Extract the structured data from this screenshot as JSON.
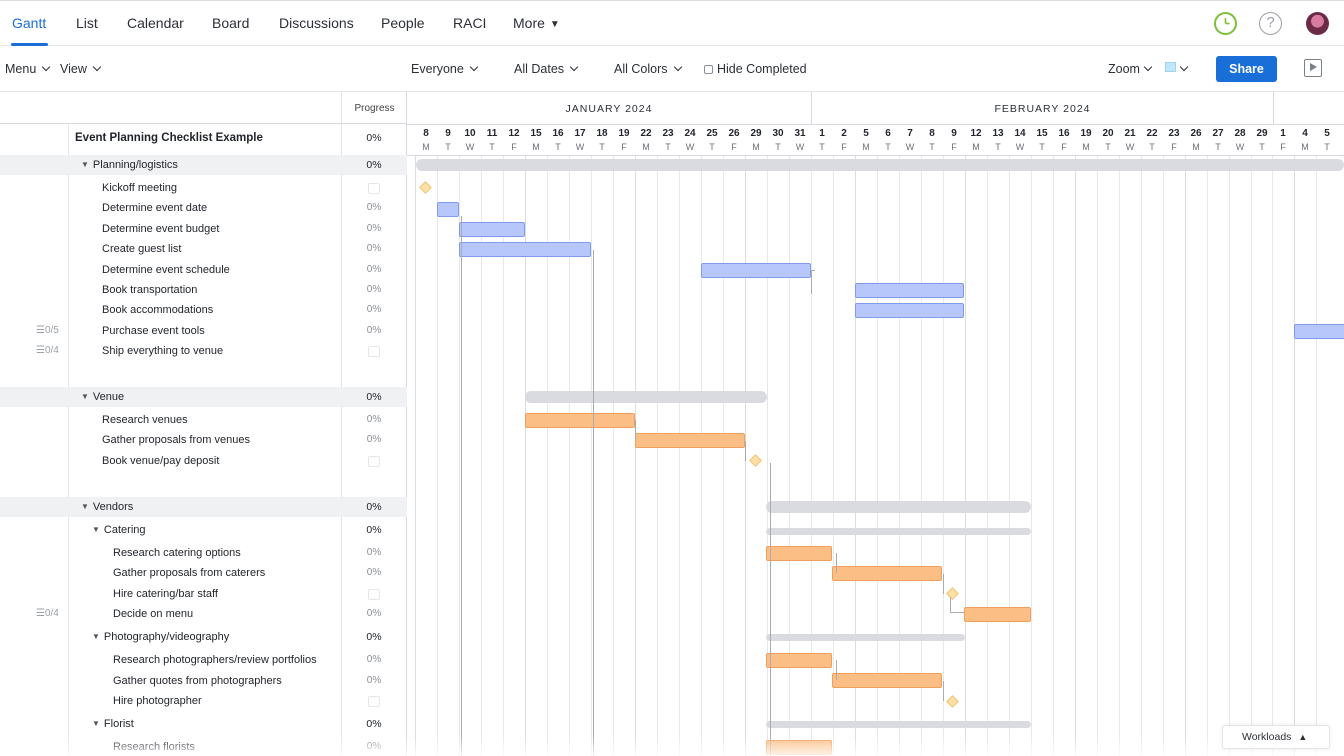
{
  "nav": {
    "tabs": [
      "Gantt",
      "List",
      "Calendar",
      "Board",
      "Discussions",
      "People",
      "RACI",
      "More"
    ],
    "active_tab": "Gantt",
    "more_caret": "▼",
    "help_glyph": "?",
    "icons": [
      "clock-icon",
      "help-icon",
      "avatar"
    ]
  },
  "toolbar": {
    "menu_label": "Menu",
    "view_label": "View",
    "filter_people": "Everyone",
    "filter_dates": "All Dates",
    "filter_colors": "All Colors",
    "hide_completed": "Hide Completed",
    "zoom_label": "Zoom",
    "share_label": "Share",
    "accent_color": "#1a6ed8"
  },
  "outline": {
    "progress_header": "Progress",
    "rows": [
      {
        "label": "Event Planning Checklist Example",
        "progress": "0%",
        "kind": "title"
      },
      {
        "label": "Planning/logistics",
        "progress": "0%",
        "kind": "group"
      },
      {
        "label": "Kickoff meeting",
        "progress": "",
        "kind": "task"
      },
      {
        "label": "Determine event date",
        "progress": "0%",
        "kind": "task"
      },
      {
        "label": "Determine event budget",
        "progress": "0%",
        "kind": "task"
      },
      {
        "label": "Create guest list",
        "progress": "0%",
        "kind": "task"
      },
      {
        "label": "Determine event schedule",
        "progress": "0%",
        "kind": "task"
      },
      {
        "label": "Book transportation",
        "progress": "0%",
        "kind": "task"
      },
      {
        "label": "Book accommodations",
        "progress": "0%",
        "kind": "task"
      },
      {
        "label": "Purchase event tools",
        "progress": "0%",
        "kind": "task",
        "subtasks": "0/5"
      },
      {
        "label": "Ship everything to venue",
        "progress": "",
        "kind": "task",
        "subtasks": "0/4"
      },
      {
        "label": "Venue",
        "progress": "0%",
        "kind": "group"
      },
      {
        "label": "Research venues",
        "progress": "0%",
        "kind": "task"
      },
      {
        "label": "Gather proposals from venues",
        "progress": "0%",
        "kind": "task"
      },
      {
        "label": "Book venue/pay deposit",
        "progress": "",
        "kind": "task"
      },
      {
        "label": "Vendors",
        "progress": "0%",
        "kind": "group"
      },
      {
        "label": "Catering",
        "progress": "0%",
        "kind": "subgroup"
      },
      {
        "label": "Research catering options",
        "progress": "0%",
        "kind": "subtask"
      },
      {
        "label": "Gather proposals from caterers",
        "progress": "0%",
        "kind": "subtask"
      },
      {
        "label": "Hire catering/bar staff",
        "progress": "",
        "kind": "subtask"
      },
      {
        "label": "Decide on menu",
        "progress": "0%",
        "kind": "subtask",
        "subtasks": "0/4"
      },
      {
        "label": "Photography/videography",
        "progress": "0%",
        "kind": "subgroup"
      },
      {
        "label": "Research photographers/review portfolios",
        "progress": "0%",
        "kind": "subtask"
      },
      {
        "label": "Gather quotes from photographers",
        "progress": "0%",
        "kind": "subtask"
      },
      {
        "label": "Hire photographer",
        "progress": "",
        "kind": "subtask"
      },
      {
        "label": "Florist",
        "progress": "0%",
        "kind": "subgroup"
      },
      {
        "label": "Research florists",
        "progress": "0%",
        "kind": "subtask"
      }
    ]
  },
  "timeline": {
    "months": [
      "JANUARY 2024",
      "FEBRUARY 2024"
    ],
    "days": [
      "8",
      "9",
      "10",
      "11",
      "12",
      "15",
      "16",
      "17",
      "18",
      "19",
      "22",
      "23",
      "24",
      "25",
      "26",
      "29",
      "30",
      "31",
      "1",
      "2",
      "5",
      "6",
      "7",
      "8",
      "9",
      "12",
      "13",
      "14",
      "15",
      "16",
      "19",
      "20",
      "21",
      "22",
      "23",
      "26",
      "27",
      "28",
      "29",
      "1",
      "4",
      "5"
    ],
    "weekdays": [
      "M",
      "T",
      "W",
      "T",
      "F",
      "M",
      "T",
      "W",
      "T",
      "F",
      "M",
      "T",
      "W",
      "T",
      "F",
      "M",
      "T",
      "W",
      "T",
      "F",
      "M",
      "T",
      "W",
      "T",
      "F",
      "M",
      "T",
      "W",
      "T",
      "F",
      "M",
      "T",
      "W",
      "T",
      "F",
      "M",
      "T",
      "W",
      "T",
      "F",
      "M",
      "T"
    ],
    "colors": {
      "planning": "#b7c7fb",
      "venue_vendors": "#fbbf86",
      "summary": "#d9dbe0",
      "milestone": "#fde0a8"
    }
  },
  "footer": {
    "workloads_label": "Workloads",
    "workloads_caret": "▲"
  }
}
